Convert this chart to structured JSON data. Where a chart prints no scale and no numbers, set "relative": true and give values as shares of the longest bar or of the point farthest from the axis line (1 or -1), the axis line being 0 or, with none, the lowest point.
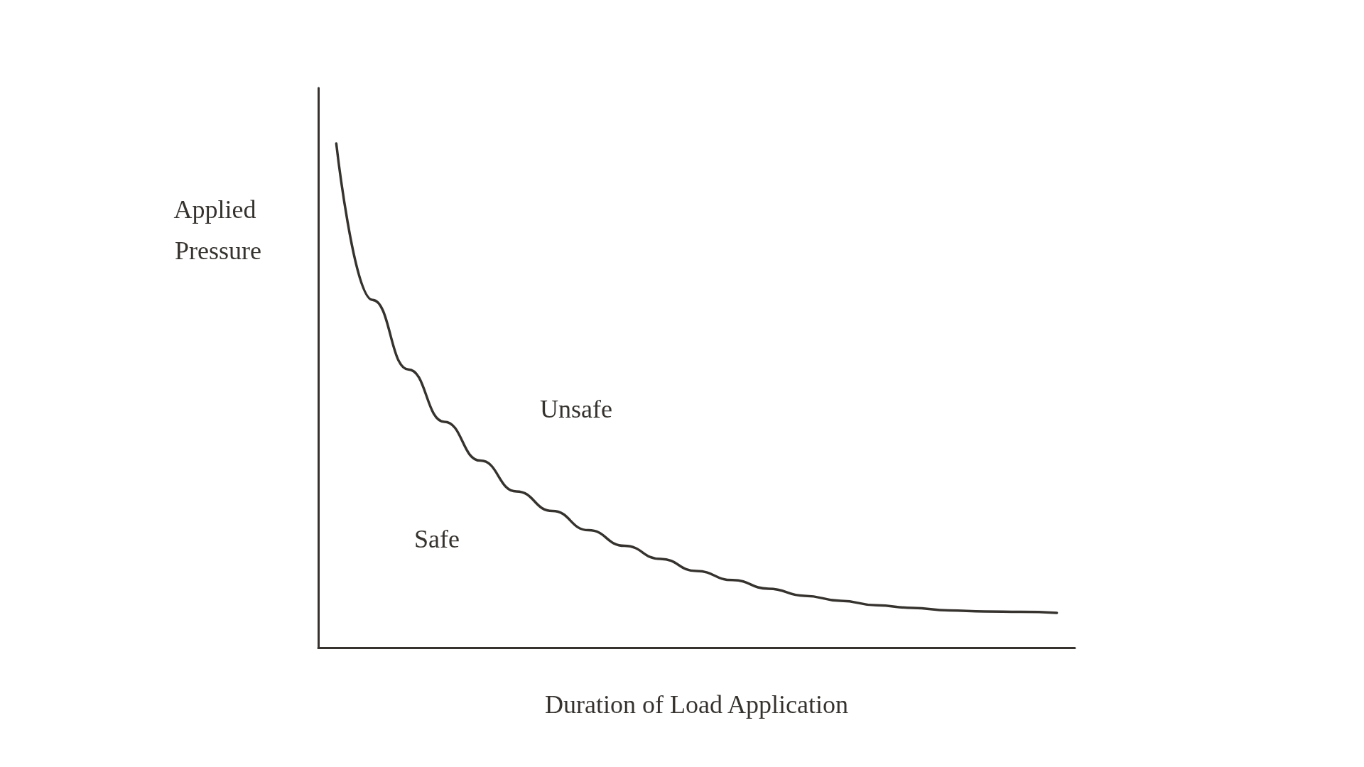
{
  "chart_data": {
    "type": "line",
    "relative": true,
    "xlabel": "Duration of Load Application",
    "ylabel": "Applied Pressure",
    "categories": [
      null,
      null,
      null,
      null,
      null,
      null,
      null,
      null,
      null,
      null,
      null,
      null,
      null,
      null,
      null,
      null,
      null,
      null,
      null,
      null,
      null
    ],
    "series": [
      {
        "color": "#36332f",
        "values": [
          1,
          0.69,
          0.552,
          0.448,
          0.371,
          0.31,
          0.271,
          0.233,
          0.202,
          0.176,
          0.152,
          0.134,
          0.117,
          0.103,
          0.093,
          0.084,
          0.079,
          0.074,
          0.072,
          0.071,
          0.069
        ]
      }
    ],
    "annotations": [
      "Unsafe",
      "Safe"
    ],
    "marker": "none",
    "line_style": "solid",
    "grid": false
  }
}
